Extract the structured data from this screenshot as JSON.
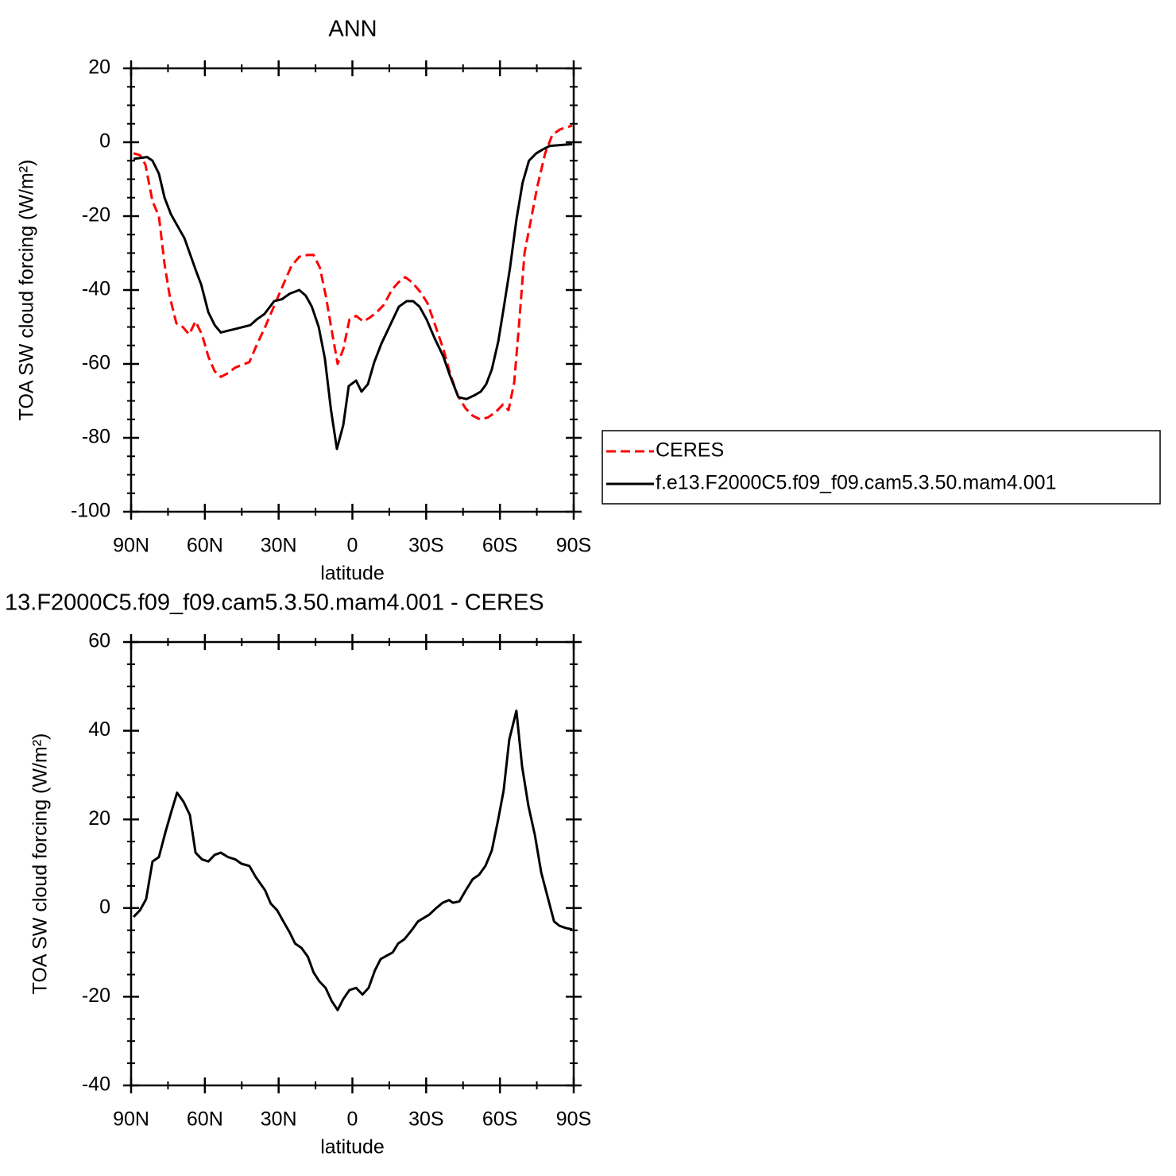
{
  "chart_data": [
    {
      "type": "line",
      "title": "ANN",
      "xlabel": "latitude",
      "ylabel": "TOA SW cloud forcing (W/m²)",
      "xlim": [
        90,
        -90
      ],
      "ylim": [
        -100,
        20
      ],
      "xticks": [
        {
          "value": 90,
          "label": "90N"
        },
        {
          "value": 60,
          "label": "60N"
        },
        {
          "value": 30,
          "label": "30N"
        },
        0,
        {
          "value": -30,
          "label": "30S"
        },
        {
          "value": -60,
          "label": "60S"
        },
        {
          "value": -90,
          "label": "90S"
        }
      ],
      "yticks": [
        -100,
        -80,
        -60,
        -40,
        -20,
        0,
        20
      ],
      "minor_xticks": [
        75,
        45,
        15,
        -15,
        -45,
        -75
      ],
      "minor_yticks": [
        -95,
        -90,
        -85,
        -75,
        -70,
        -65,
        -55,
        -50,
        -45,
        -35,
        -30,
        -25,
        -15,
        -10,
        -5,
        5,
        10,
        15
      ],
      "legend": "right",
      "series": [
        {
          "name": "CERES",
          "color": "#ff0000",
          "line_style": "dashed",
          "x": [
            89,
            86.4,
            84.2,
            81.3,
            78.7,
            76.4,
            74.2,
            71.6,
            69,
            66.4,
            63.8,
            61.2,
            58.6,
            56,
            53.5,
            50.6,
            47.7,
            41.9,
            39,
            35.5,
            31.3,
            28.1,
            24.8,
            21.6,
            18.1,
            15.8,
            13.2,
            10.7,
            8.4,
            6,
            3.7,
            1.2,
            -1.5,
            -4.4,
            -7,
            -9.9,
            -12.8,
            -16,
            -18.6,
            -21.5,
            -24.4,
            -27.6,
            -30.5,
            -33.4,
            -37,
            -39.9,
            -42.8,
            -46,
            -48.9,
            -51.9,
            -55.1,
            -58.3,
            -61.2,
            -63.5,
            -65.8,
            -67.7,
            -70,
            -72.6,
            -75.2,
            -78.4,
            -81.3,
            -84.5,
            -89.4
          ],
          "values": [
            -3,
            -3.5,
            -6,
            -16,
            -20,
            -33,
            -42,
            -49,
            -50,
            -52,
            -48.5,
            -52,
            -58,
            -62,
            -63.5,
            -62.5,
            -61,
            -59.5,
            -55,
            -50,
            -43.5,
            -38.5,
            -33.5,
            -31,
            -30.5,
            -30.5,
            -34,
            -42,
            -51,
            -60,
            -56,
            -48,
            -47,
            -48.5,
            -47.5,
            -46,
            -44,
            -40,
            -38,
            -36.5,
            -38,
            -40.5,
            -43.5,
            -49,
            -56,
            -63,
            -68.5,
            -72,
            -74,
            -75,
            -74.5,
            -73,
            -71,
            -72.5,
            -65,
            -50,
            -30,
            -21,
            -12,
            -3,
            2,
            3.5,
            4.5
          ]
        },
        {
          "name": "f.e13.F2000C5.f09_f09.cam5.3.50.mam4.001",
          "color": "#000000",
          "line_style": "solid",
          "x": [
            89,
            83.5,
            81.3,
            78.7,
            76.4,
            73.8,
            68.3,
            63.5,
            61.5,
            58.6,
            56,
            53.5,
            50.6,
            47.4,
            41.5,
            39,
            35.8,
            31.8,
            28.7,
            25.5,
            21.6,
            19,
            16.5,
            13.7,
            11.2,
            8.7,
            6.3,
            3.7,
            1.5,
            -1.5,
            -3.7,
            -6.3,
            -8.9,
            -11.8,
            -15,
            -18.9,
            -22.1,
            -24.7,
            -27.3,
            -30.2,
            -33.4,
            -37,
            -39.6,
            -43.1,
            -46.4,
            -49.6,
            -52.2,
            -54.4,
            -56.7,
            -59.3,
            -61.5,
            -64.1,
            -66.7,
            -69.2,
            -71.8,
            -74.8,
            -77.3,
            -80.3,
            -89.4
          ],
          "values": [
            -4.5,
            -4,
            -5,
            -8.5,
            -15,
            -19.5,
            -26,
            -35,
            -38.5,
            -46,
            -49.5,
            -51.5,
            -51,
            -50.5,
            -49.5,
            -48,
            -46.5,
            -43,
            -42.5,
            -41,
            -40,
            -41.5,
            -44.5,
            -50,
            -58.5,
            -72.5,
            -83,
            -76.5,
            -66,
            -64.5,
            -67.5,
            -65.5,
            -59.5,
            -54.5,
            -50,
            -44.5,
            -43,
            -43,
            -44.5,
            -48,
            -53,
            -58,
            -63,
            -69,
            -69.5,
            -68.5,
            -67.5,
            -65.5,
            -61.5,
            -54,
            -45,
            -34,
            -21,
            -11,
            -5,
            -3,
            -2,
            -1,
            -0.5
          ]
        }
      ]
    },
    {
      "type": "line",
      "title": "13.F2000C5.f09_f09.cam5.3.50.mam4.001 - CERES",
      "xlabel": "latitude",
      "ylabel": "TOA SW cloud forcing (W/m²)",
      "xlim": [
        90,
        -90
      ],
      "ylim": [
        -40,
        60
      ],
      "xticks": [
        {
          "value": 90,
          "label": "90N"
        },
        {
          "value": 60,
          "label": "60N"
        },
        {
          "value": 30,
          "label": "30N"
        },
        0,
        {
          "value": -30,
          "label": "30S"
        },
        {
          "value": -60,
          "label": "60S"
        },
        {
          "value": -90,
          "label": "90S"
        }
      ],
      "yticks": [
        -40,
        -20,
        0,
        20,
        40,
        60
      ],
      "minor_xticks": [
        75,
        45,
        15,
        -15,
        -45,
        -75
      ],
      "minor_yticks": [
        -35,
        -30,
        -25,
        -15,
        -10,
        -5,
        5,
        10,
        15,
        25,
        30,
        35,
        45,
        50,
        55
      ],
      "series": [
        {
          "color": "#000000",
          "line_style": "solid",
          "x": [
            89,
            86.4,
            83.9,
            81.3,
            78.7,
            76.1,
            73.5,
            71.3,
            68.7,
            66.1,
            63.8,
            61.2,
            58.6,
            56,
            53.5,
            50.6,
            47.7,
            45.1,
            41.9,
            39.3,
            35.5,
            33.2,
            30.6,
            28.1,
            25.5,
            23.3,
            20.7,
            18.1,
            15.8,
            13.5,
            10.9,
            8.4,
            6,
            3.7,
            1.2,
            -1.5,
            -4.1,
            -6.6,
            -9.2,
            -11.5,
            -16.4,
            -18.6,
            -21.2,
            -24.1,
            -26.7,
            -31.2,
            -34.1,
            -36.7,
            -39.3,
            -40.9,
            -43.5,
            -46.1,
            -48.9,
            -51.5,
            -54.1,
            -56.7,
            -59.3,
            -61.5,
            -63.8,
            -66.7,
            -69,
            -71.6,
            -74.2,
            -76.8,
            -79.4,
            -82,
            -84.2,
            -86.8,
            -89.4
          ],
          "values": [
            -2,
            -0.5,
            2,
            10.5,
            11.5,
            17,
            22,
            26,
            24,
            21,
            12.5,
            11,
            10.5,
            12,
            12.5,
            11.5,
            11,
            10,
            9.5,
            7,
            4,
            1,
            -0.5,
            -3,
            -5.5,
            -8,
            -9,
            -11,
            -14.5,
            -16.5,
            -18,
            -21,
            -23,
            -20.5,
            -18.5,
            -18,
            -19.5,
            -18,
            -14,
            -11.5,
            -10,
            -8,
            -7,
            -5,
            -3,
            -1.5,
            0,
            1.2,
            1.8,
            1.2,
            1.5,
            4,
            6.5,
            7.5,
            9.5,
            13,
            20,
            26.5,
            38,
            44.5,
            32,
            23,
            16.5,
            8,
            2.5,
            -3,
            -4,
            -4.5,
            -4.8
          ]
        }
      ]
    }
  ]
}
